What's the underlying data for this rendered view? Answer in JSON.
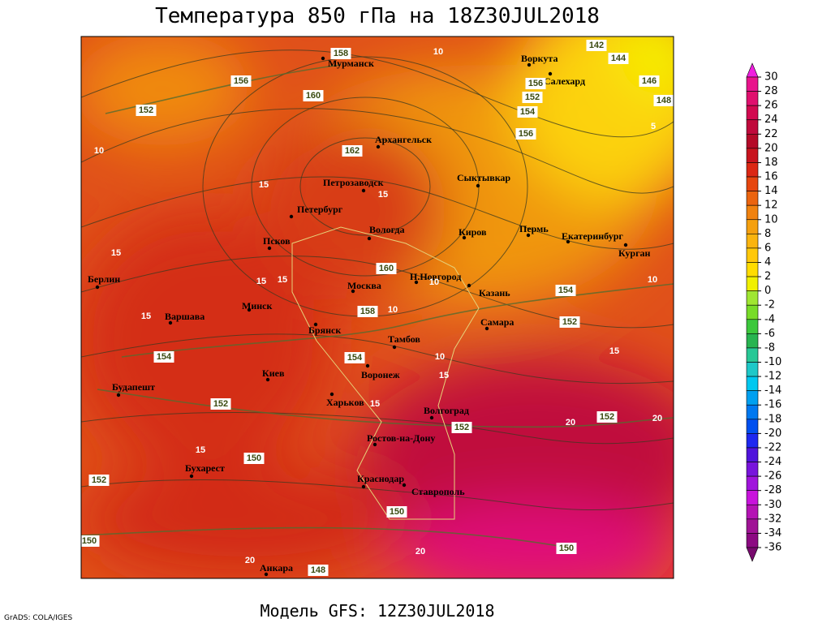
{
  "header": {
    "title": "Температура 850 гПа на 18Z30JUL2018"
  },
  "footer": {
    "model": "Модель GFS: 12Z30JUL2018",
    "credit": "GrADS: COLA/IGES"
  },
  "colorbar": {
    "labels": [
      30,
      28,
      26,
      24,
      22,
      20,
      18,
      16,
      14,
      12,
      10,
      8,
      6,
      4,
      2,
      0,
      -2,
      -4,
      -6,
      -8,
      -10,
      -12,
      -14,
      -16,
      -18,
      -20,
      -22,
      -24,
      -26,
      -28,
      -30,
      -32,
      -34,
      -36
    ],
    "colors": [
      "#f01ee0",
      "#e8148c",
      "#e0106e",
      "#d20a50",
      "#c00a3c",
      "#b40a28",
      "#c8141e",
      "#dc2814",
      "#e6460f",
      "#eb640f",
      "#f0820f",
      "#f5a00f",
      "#fab40f",
      "#ffc80a",
      "#ffdc00",
      "#f0f000",
      "#a0e632",
      "#78dc28",
      "#3cc83c",
      "#28b450",
      "#28c896",
      "#1ec8c8",
      "#00c8f0",
      "#00a0f0",
      "#0078f0",
      "#0050f0",
      "#1e28f0",
      "#5014dc",
      "#7814dc",
      "#a014dc",
      "#c814dc",
      "#b414b4",
      "#a01496",
      "#8c0a82",
      "#780a6e"
    ]
  },
  "map": {
    "cities": [
      "Мурманск",
      "Воркута",
      "Салехард",
      "Архангельск",
      "Петрозаводск",
      "Сыктывкар",
      "Петербург",
      "Вологда",
      "Киров",
      "Пермь",
      "Екатеринбург",
      "Курган",
      "Псков",
      "Берлин",
      "Москва",
      "Н.Новгород",
      "Казань",
      "Минск",
      "Варшава",
      "Брянск",
      "Тамбов",
      "Самара",
      "Киев",
      "Воронеж",
      "Будапешт",
      "Харьков",
      "Волгоград",
      "Ростов-на-Дону",
      "Бухарест",
      "Краснодар",
      "Ставрополь",
      "Анкара"
    ],
    "contour_labels": [
      158,
      10,
      142,
      144,
      156,
      160,
      146,
      152,
      156,
      152,
      154,
      148,
      5,
      156,
      162,
      10,
      15,
      15,
      15,
      160,
      15,
      15,
      10,
      10,
      154,
      158,
      10,
      15,
      152,
      15,
      154,
      154,
      10,
      15,
      152,
      15,
      20,
      152,
      20,
      152,
      15,
      150,
      152,
      150,
      150,
      150,
      20,
      148,
      20
    ]
  }
}
